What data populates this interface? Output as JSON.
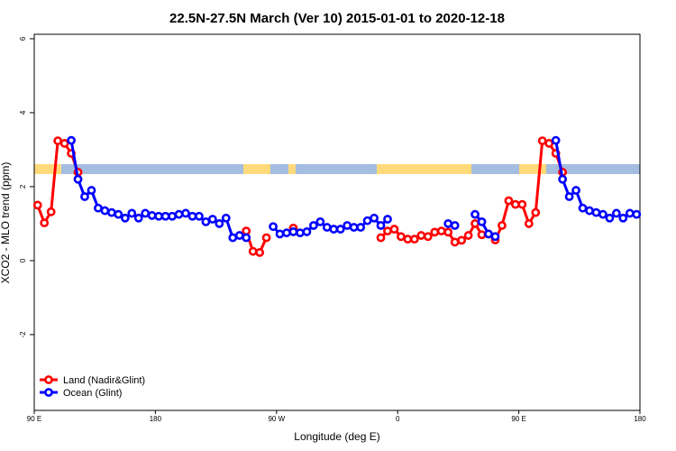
{
  "chart_data": {
    "type": "line",
    "title": "22.5N-27.5N March (Ver 10)   2015-01-01 to 2020-12-18",
    "xlabel": "Longitude (deg E)",
    "ylabel": "XCO2 - MLO trend (ppm)",
    "x": [
      92.5,
      97.5,
      102.5,
      107.5,
      112.5,
      117.5,
      122.5,
      127.5,
      132.5,
      137.5,
      142.5,
      147.5,
      152.5,
      157.5,
      162.5,
      167.5,
      172.5,
      177.5,
      182.5,
      187.5,
      192.5,
      197.5,
      202.5,
      207.5,
      212.5,
      217.5,
      222.5,
      227.5,
      232.5,
      237.5,
      242.5,
      247.5,
      252.5,
      257.5,
      262.5,
      267.5,
      272.5,
      277.5,
      282.5,
      287.5,
      292.5,
      297.5,
      302.5,
      307.5,
      312.5,
      317.5,
      322.5,
      327.5,
      332.5,
      337.5,
      342.5,
      347.5,
      352.5,
      357.5,
      362.5,
      367.5,
      372.5,
      377.5,
      382.5,
      387.5,
      392.5,
      397.5,
      402.5,
      407.5,
      412.5,
      417.5,
      422.5,
      427.5,
      432.5,
      437.5,
      442.5,
      447.5,
      452.5,
      457.5,
      462.5,
      467.5,
      472.5,
      477.5,
      482.5,
      487.5,
      492.5,
      497.5,
      502.5,
      507.5,
      512.5,
      517.5,
      522.5,
      527.5,
      532.5,
      537.5
    ],
    "series": [
      {
        "name": "Land (Nadir&Glint)",
        "color": "#ff0000",
        "values": [
          1.5,
          1.02,
          1.32,
          3.24,
          3.17,
          2.9,
          2.39,
          null,
          null,
          null,
          null,
          null,
          null,
          null,
          null,
          null,
          null,
          null,
          null,
          null,
          null,
          null,
          null,
          null,
          null,
          null,
          null,
          null,
          null,
          null,
          null,
          0.8,
          0.25,
          0.22,
          0.62,
          null,
          null,
          null,
          0.88,
          null,
          null,
          null,
          null,
          null,
          null,
          null,
          null,
          null,
          null,
          null,
          null,
          0.62,
          0.8,
          0.85,
          0.65,
          0.58,
          0.58,
          0.68,
          0.65,
          0.77,
          0.8,
          0.77,
          0.5,
          0.55,
          0.68,
          1.0,
          0.7,
          0.72,
          0.56,
          0.95,
          1.62,
          1.52,
          1.52,
          1.0,
          1.3,
          3.24,
          3.17,
          2.9,
          2.39,
          null,
          null,
          null,
          null,
          null,
          null,
          null,
          null,
          null,
          null,
          null
        ]
      },
      {
        "name": "Ocean (Glint)",
        "color": "#0000ff",
        "values": [
          null,
          null,
          null,
          null,
          null,
          3.25,
          2.2,
          1.73,
          1.9,
          1.42,
          1.35,
          1.3,
          1.25,
          1.15,
          1.28,
          1.15,
          1.28,
          1.22,
          1.2,
          1.2,
          1.2,
          1.25,
          1.28,
          1.2,
          1.2,
          1.05,
          1.12,
          1.0,
          1.15,
          0.62,
          0.68,
          0.62,
          null,
          null,
          null,
          0.92,
          0.72,
          0.75,
          0.78,
          0.75,
          0.78,
          0.95,
          1.05,
          0.9,
          0.85,
          0.85,
          0.95,
          0.9,
          0.9,
          1.08,
          1.15,
          0.95,
          1.12,
          null,
          null,
          null,
          null,
          null,
          null,
          null,
          null,
          1.0,
          0.95,
          null,
          null,
          1.25,
          1.05,
          0.72,
          0.65,
          null,
          null,
          null,
          null,
          null,
          null,
          null,
          null,
          3.25,
          2.2,
          1.73,
          1.9,
          1.42,
          1.35,
          1.3,
          1.25,
          1.15,
          1.28,
          1.15,
          1.28,
          1.25
        ]
      }
    ],
    "xlim": [
      90,
      540
    ],
    "xticks": [
      {
        "value": 90,
        "label": "90 E"
      },
      {
        "value": 180,
        "label": "180"
      },
      {
        "value": 270,
        "label": "90 W"
      },
      {
        "value": 360,
        "label": "0"
      },
      {
        "value": 450,
        "label": "90 E"
      },
      {
        "value": 540,
        "label": "180"
      }
    ],
    "ylim": [
      -4.05,
      6.12
    ],
    "yticks": [
      -2,
      0,
      2,
      4,
      6
    ],
    "legend": "bottom-left"
  }
}
